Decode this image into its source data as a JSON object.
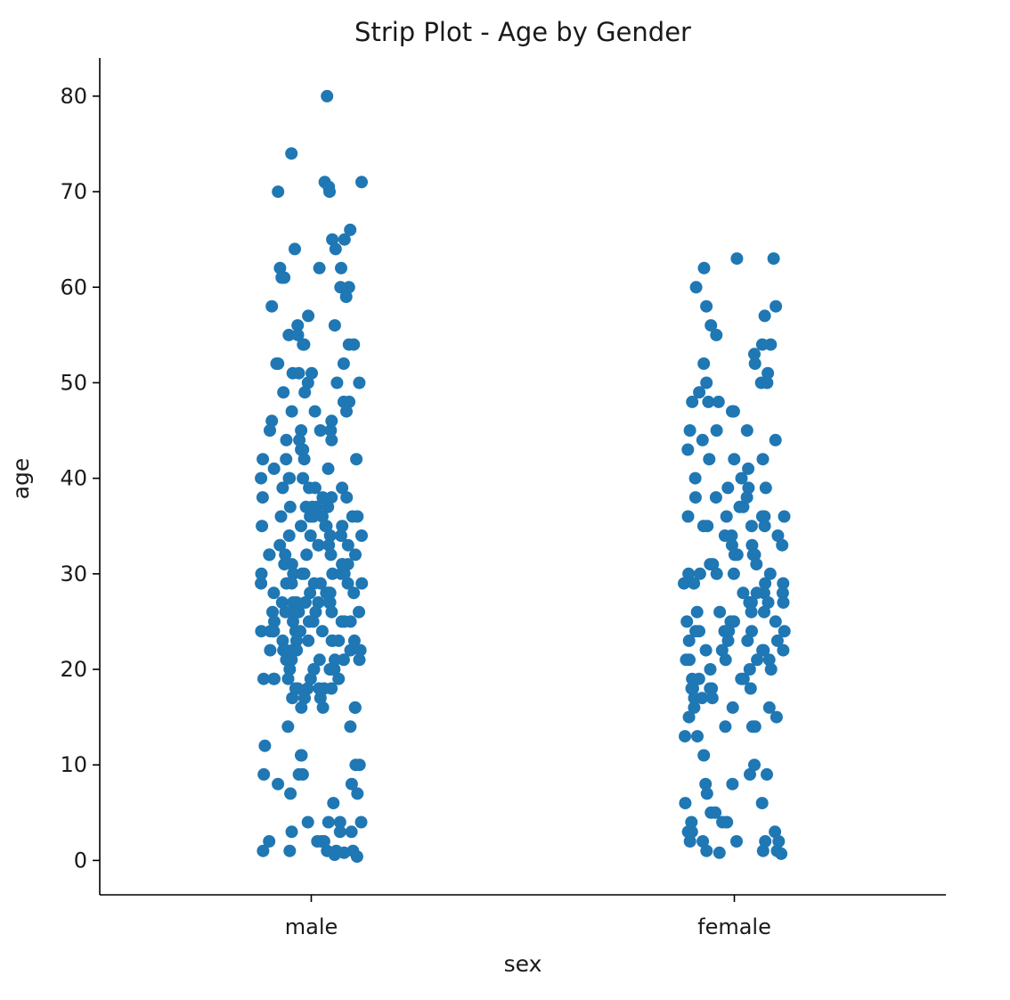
{
  "chart_data": {
    "type": "scatter",
    "subtype": "strip",
    "title": "Strip Plot - Age by Gender",
    "xlabel": "sex",
    "ylabel": "age",
    "categories": [
      "male",
      "female"
    ],
    "yticks": [
      0,
      10,
      20,
      30,
      40,
      50,
      60,
      70,
      80
    ],
    "ylim": [
      -3.6,
      84
    ],
    "grid": false,
    "legend": "none",
    "point_color": "#1f77b4",
    "series": [
      {
        "category": "male",
        "values": [
          80,
          74,
          71,
          71,
          70,
          70.5,
          70,
          66,
          65,
          65,
          64,
          64,
          62,
          62,
          62,
          61,
          61,
          60,
          60,
          59,
          58,
          57,
          56,
          56,
          55,
          55,
          54,
          54,
          54,
          54,
          52,
          52,
          52,
          51,
          51,
          51,
          50,
          50,
          50,
          49,
          49,
          48,
          48,
          47,
          47,
          47,
          46,
          46,
          45,
          45,
          45,
          45,
          44,
          44,
          44,
          43,
          43,
          42,
          42,
          42,
          42,
          41,
          41,
          40,
          40,
          40,
          40,
          39,
          39,
          39,
          39,
          38,
          38,
          38,
          38,
          37,
          37,
          37,
          37,
          37,
          36,
          36,
          36,
          36,
          36,
          36,
          35,
          35,
          35,
          35,
          35,
          34,
          34,
          34,
          34,
          34,
          33,
          33,
          33,
          33,
          33,
          32,
          32,
          32,
          32,
          32,
          32,
          31,
          31,
          31,
          31,
          31,
          30,
          30,
          30,
          30,
          30,
          30,
          30,
          29,
          29,
          29,
          29,
          29,
          29,
          29,
          28,
          28,
          28,
          28,
          28,
          28,
          28,
          28,
          27,
          27,
          27,
          27,
          27,
          27,
          27,
          26,
          26,
          26,
          26,
          26,
          26,
          26,
          25,
          25,
          25,
          25,
          25,
          25,
          25,
          25,
          24,
          24,
          24,
          24,
          24,
          24,
          24,
          24,
          23,
          23,
          23,
          23,
          23,
          23,
          23,
          22,
          22,
          22,
          22,
          22,
          22,
          22,
          21,
          21,
          21,
          21,
          21,
          21,
          20,
          20,
          20,
          20,
          20,
          20,
          19,
          19,
          19,
          19,
          19,
          19,
          18,
          18,
          18,
          18,
          18,
          18,
          17,
          17,
          17,
          17,
          16,
          16,
          16,
          16,
          14,
          14,
          12,
          11,
          11,
          10,
          10,
          9,
          9,
          9,
          8,
          8,
          7,
          7,
          6,
          4,
          4,
          4,
          4,
          3,
          3,
          3,
          2,
          2,
          2,
          2,
          1,
          1,
          1,
          1,
          1,
          0.8,
          0.6,
          0.4
        ]
      },
      {
        "category": "female",
        "values": [
          63,
          63,
          62,
          60,
          58,
          58,
          57,
          56,
          55,
          54,
          54,
          53,
          52,
          52,
          51,
          50,
          50,
          50,
          49,
          48,
          48,
          48,
          47,
          47,
          45,
          45,
          45,
          44,
          44,
          43,
          42,
          42,
          42,
          41,
          40,
          40,
          39,
          39,
          39,
          38,
          38,
          38,
          37,
          37,
          36,
          36,
          36,
          36,
          36,
          35,
          35,
          35,
          35,
          34,
          34,
          34,
          33,
          33,
          33,
          32,
          32,
          32,
          32,
          31,
          31,
          31,
          30,
          30,
          30,
          30,
          30,
          29,
          29,
          29,
          29,
          28,
          28,
          28,
          28,
          27,
          27,
          27,
          27,
          26,
          26,
          26,
          26,
          25,
          25,
          25,
          25,
          24,
          24,
          24,
          24,
          24,
          24,
          23,
          23,
          23,
          23,
          22,
          22,
          22,
          22,
          22,
          21,
          21,
          21,
          21,
          21,
          20,
          20,
          20,
          19,
          19,
          19,
          19,
          18,
          18,
          18,
          18,
          18,
          17,
          17,
          17,
          16,
          16,
          16,
          15,
          15,
          14,
          14,
          14,
          13,
          13,
          11,
          10,
          9,
          9,
          8,
          8,
          7,
          6,
          6,
          5,
          5,
          4,
          4,
          4,
          4,
          3,
          3,
          3,
          2,
          2,
          2,
          2,
          2,
          1,
          1,
          1,
          0.8,
          0.7
        ]
      }
    ]
  }
}
